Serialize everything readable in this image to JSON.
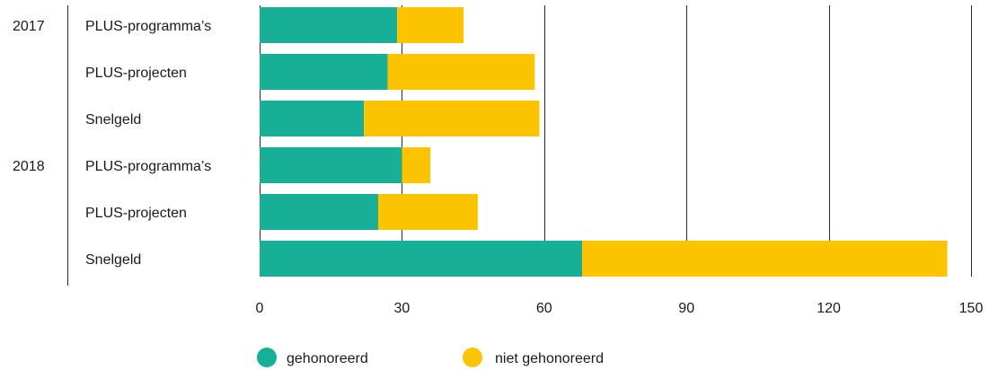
{
  "chart_data": {
    "type": "bar",
    "orientation": "horizontal",
    "stacked": true,
    "groups": [
      {
        "label": "2017",
        "categories": [
          "PLUS-programma’s",
          "PLUS-projecten",
          "Snelgeld"
        ]
      },
      {
        "label": "2018",
        "categories": [
          "PLUS-programma’s",
          "PLUS-projecten",
          "Snelgeld"
        ]
      }
    ],
    "series": [
      {
        "name": "gehonoreerd",
        "color": "#17af96",
        "values": [
          29,
          27,
          22,
          30,
          25,
          68
        ]
      },
      {
        "name": "niet gehonoreerd",
        "color": "#fbc300",
        "values": [
          14,
          31,
          37,
          6,
          21,
          77
        ]
      }
    ],
    "xlim": [
      0,
      150
    ],
    "xticks": [
      "0",
      "30",
      "60",
      "90",
      "120",
      "150"
    ],
    "tick_values": [
      0,
      30,
      60,
      90,
      120,
      150
    ],
    "grid": true,
    "legend_position": "bottom"
  }
}
